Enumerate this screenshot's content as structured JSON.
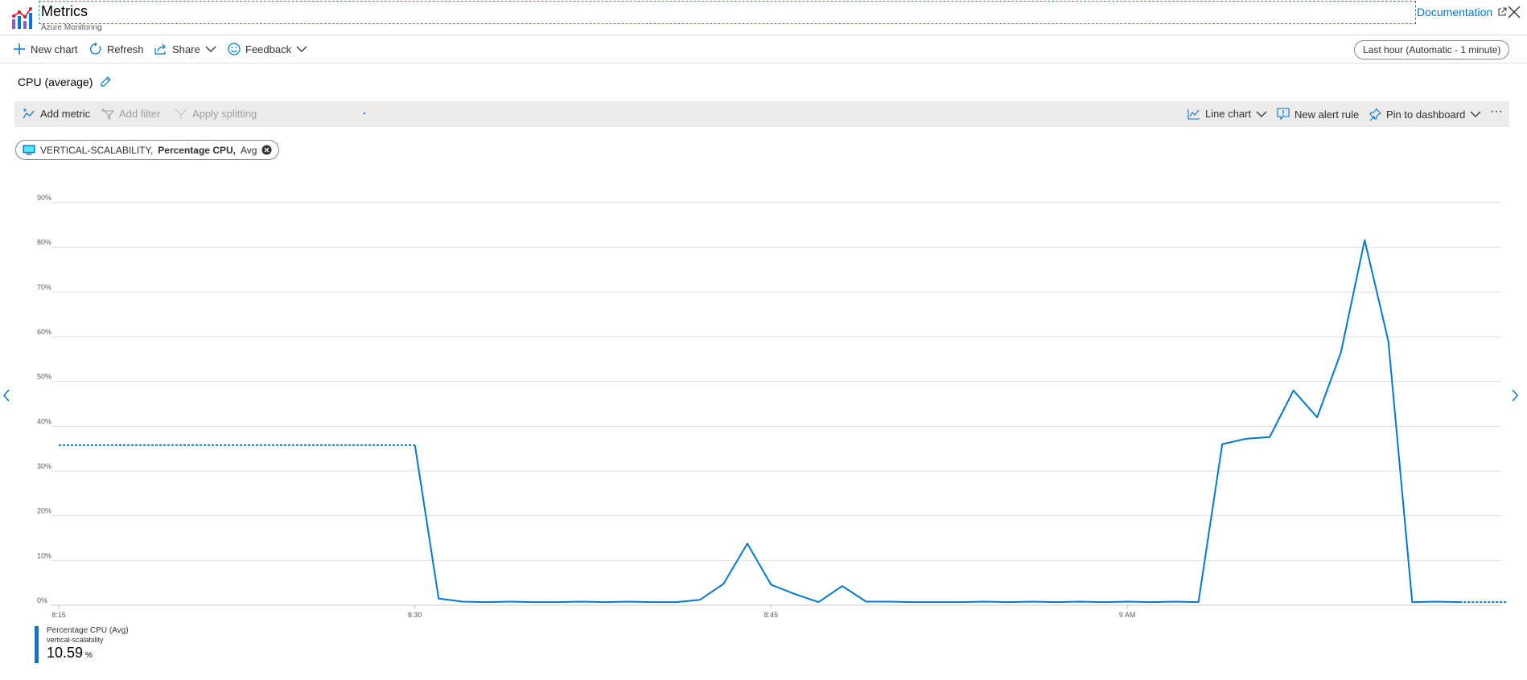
{
  "header": {
    "title": "Metrics",
    "subtitle": "Azure Monitoring",
    "documentation_label": "Documentation",
    "logo_icon": "metrics-bars-icon",
    "close_icon": "close-icon"
  },
  "toolbar": {
    "new_chart_label": "New chart",
    "refresh_label": "Refresh",
    "share_label": "Share",
    "feedback_label": "Feedback",
    "time_range_label": "Last hour (Automatic - 1 minute)"
  },
  "chart_title": "CPU (average)",
  "metric_toolbar": {
    "add_metric_label": "Add metric",
    "add_filter_label": "Add filter",
    "apply_splitting_label": "Apply splitting",
    "chart_type_label": "Line chart",
    "new_alert_rule_label": "New alert rule",
    "pin_label": "Pin to dashboard",
    "more_label": "···"
  },
  "metric_pill": {
    "resource": "VERTICAL-SCALABILITY,",
    "metric": "Percentage CPU,",
    "aggregation": "Avg"
  },
  "chart_data": {
    "type": "line",
    "title": "",
    "xlabel": "",
    "ylabel": "",
    "x_tick_labels": [
      "8:15",
      "8:30",
      "8:45",
      "9 AM"
    ],
    "y_tick_labels": [
      "0%",
      "10%",
      "20%",
      "30%",
      "40%",
      "50%",
      "60%",
      "70%",
      "80%",
      "90%"
    ],
    "ylim": [
      0,
      90
    ],
    "xlim": [
      "8:15",
      "9:17"
    ],
    "grid": true,
    "series": [
      {
        "name": "Percentage CPU (Avg)",
        "color": "#0078d4",
        "dotted_segments": [
          {
            "x": [
              "8:15",
              "8:30"
            ],
            "y": [
              35.8,
              35.8
            ]
          },
          {
            "x": [
              "9:14",
              "9:16"
            ],
            "y": [
              0.7,
              0.7
            ]
          }
        ],
        "x": [
          "8:30",
          "8:31",
          "8:32",
          "8:33",
          "8:34",
          "8:35",
          "8:36",
          "8:37",
          "8:38",
          "8:39",
          "8:40",
          "8:41",
          "8:42",
          "8:43",
          "8:44",
          "8:45",
          "8:46",
          "8:47",
          "8:48",
          "8:49",
          "8:50",
          "8:51",
          "8:52",
          "8:53",
          "8:54",
          "8:55",
          "8:56",
          "8:57",
          "8:58",
          "8:59",
          "9:00",
          "9:01",
          "9:02",
          "9:03",
          "9:04",
          "9:05",
          "9:06",
          "9:07",
          "9:08",
          "9:09",
          "9:10",
          "9:11",
          "9:12",
          "9:13",
          "9:14"
        ],
        "y": [
          35.8,
          1.5,
          0.8,
          0.7,
          0.8,
          0.7,
          0.7,
          0.8,
          0.7,
          0.8,
          0.7,
          0.7,
          1.2,
          4.8,
          13.8,
          4.6,
          2.5,
          0.7,
          4.3,
          0.8,
          0.8,
          0.7,
          0.7,
          0.7,
          0.8,
          0.7,
          0.8,
          0.7,
          0.8,
          0.7,
          0.8,
          0.7,
          0.8,
          0.7,
          36.0,
          37.2,
          37.6,
          48.0,
          42.0,
          56.5,
          81.6,
          59.0,
          0.7,
          0.8,
          0.7
        ]
      }
    ]
  },
  "legend": {
    "series_label": "Percentage CPU (Avg)",
    "resource_label": "vertical-scalability",
    "value": "10.59",
    "unit": "%"
  }
}
